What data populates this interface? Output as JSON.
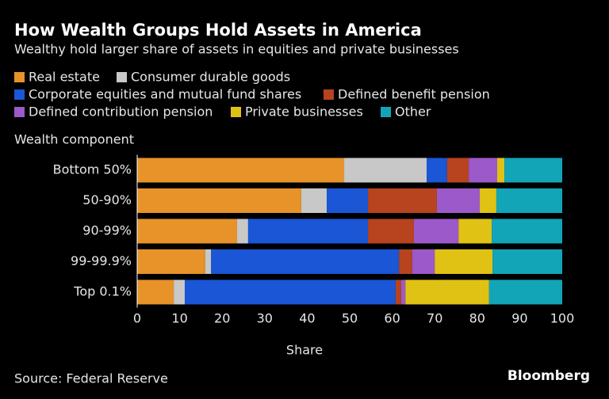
{
  "chart_data": {
    "type": "stacked-bar-horizontal",
    "title": "How Wealth Groups Hold Assets in America",
    "subtitle": "Wealthy hold larger share of assets in equities and private businesses",
    "y_label": "Wealth component",
    "x_label": "Share",
    "source": "Source: Federal Reserve",
    "logo": "Bloomberg",
    "categories": [
      "Bottom 50%",
      "50-90%",
      "90-99%",
      "99-99.9%",
      "Top 0.1%"
    ],
    "series": [
      {
        "name": "Real estate",
        "color": "#e8922a",
        "values": [
          48.7,
          38.6,
          23.5,
          16.0,
          8.6
        ]
      },
      {
        "name": "Consumer durable goods",
        "color": "#c8c8c8",
        "values": [
          19.4,
          6.0,
          2.6,
          1.4,
          2.6
        ]
      },
      {
        "name": "Corporate equities and mutual fund shares",
        "color": "#1a56d6",
        "values": [
          4.8,
          9.7,
          28.2,
          44.2,
          49.6
        ]
      },
      {
        "name": "Defined benefit pension",
        "color": "#b8431f",
        "values": [
          5.1,
          16.2,
          10.8,
          3.1,
          1.3
        ]
      },
      {
        "name": "Defined contribution pension",
        "color": "#9b59c9",
        "values": [
          6.7,
          10.1,
          10.5,
          5.3,
          1.0
        ]
      },
      {
        "name": "Private businesses",
        "color": "#e0c214",
        "values": [
          1.7,
          3.9,
          7.8,
          13.6,
          19.7
        ]
      },
      {
        "name": "Other",
        "color": "#12a5b8",
        "values": [
          13.6,
          15.5,
          16.6,
          16.4,
          17.2
        ]
      }
    ],
    "xlim": [
      0,
      100
    ],
    "xticks": [
      0,
      10,
      20,
      30,
      40,
      50,
      60,
      70,
      80,
      90,
      100
    ]
  }
}
